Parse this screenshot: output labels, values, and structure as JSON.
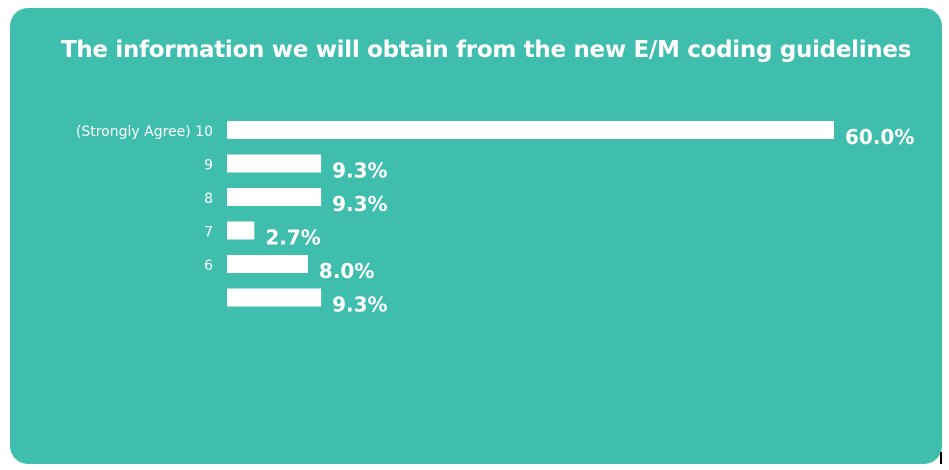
{
  "chart_data": {
    "type": "bar",
    "orientation": "horizontal",
    "title": "The information we will obtain from the new E/M coding guidelines",
    "categories": [
      "(Strongly Agree) 10",
      "9",
      "8",
      "7",
      "6",
      ""
    ],
    "values": [
      60.0,
      9.3,
      9.3,
      2.7,
      8.0,
      9.3
    ],
    "value_labels": [
      "60.0%",
      "9.3%",
      "9.3%",
      "2.7%",
      "8.0%",
      "9.3%"
    ],
    "unit": "%",
    "xlim": [
      0,
      60
    ],
    "grid": false,
    "legend": "none",
    "colors": {
      "background": "#3fbeae",
      "bar": "#ffffff",
      "text": "#ffffff"
    }
  }
}
